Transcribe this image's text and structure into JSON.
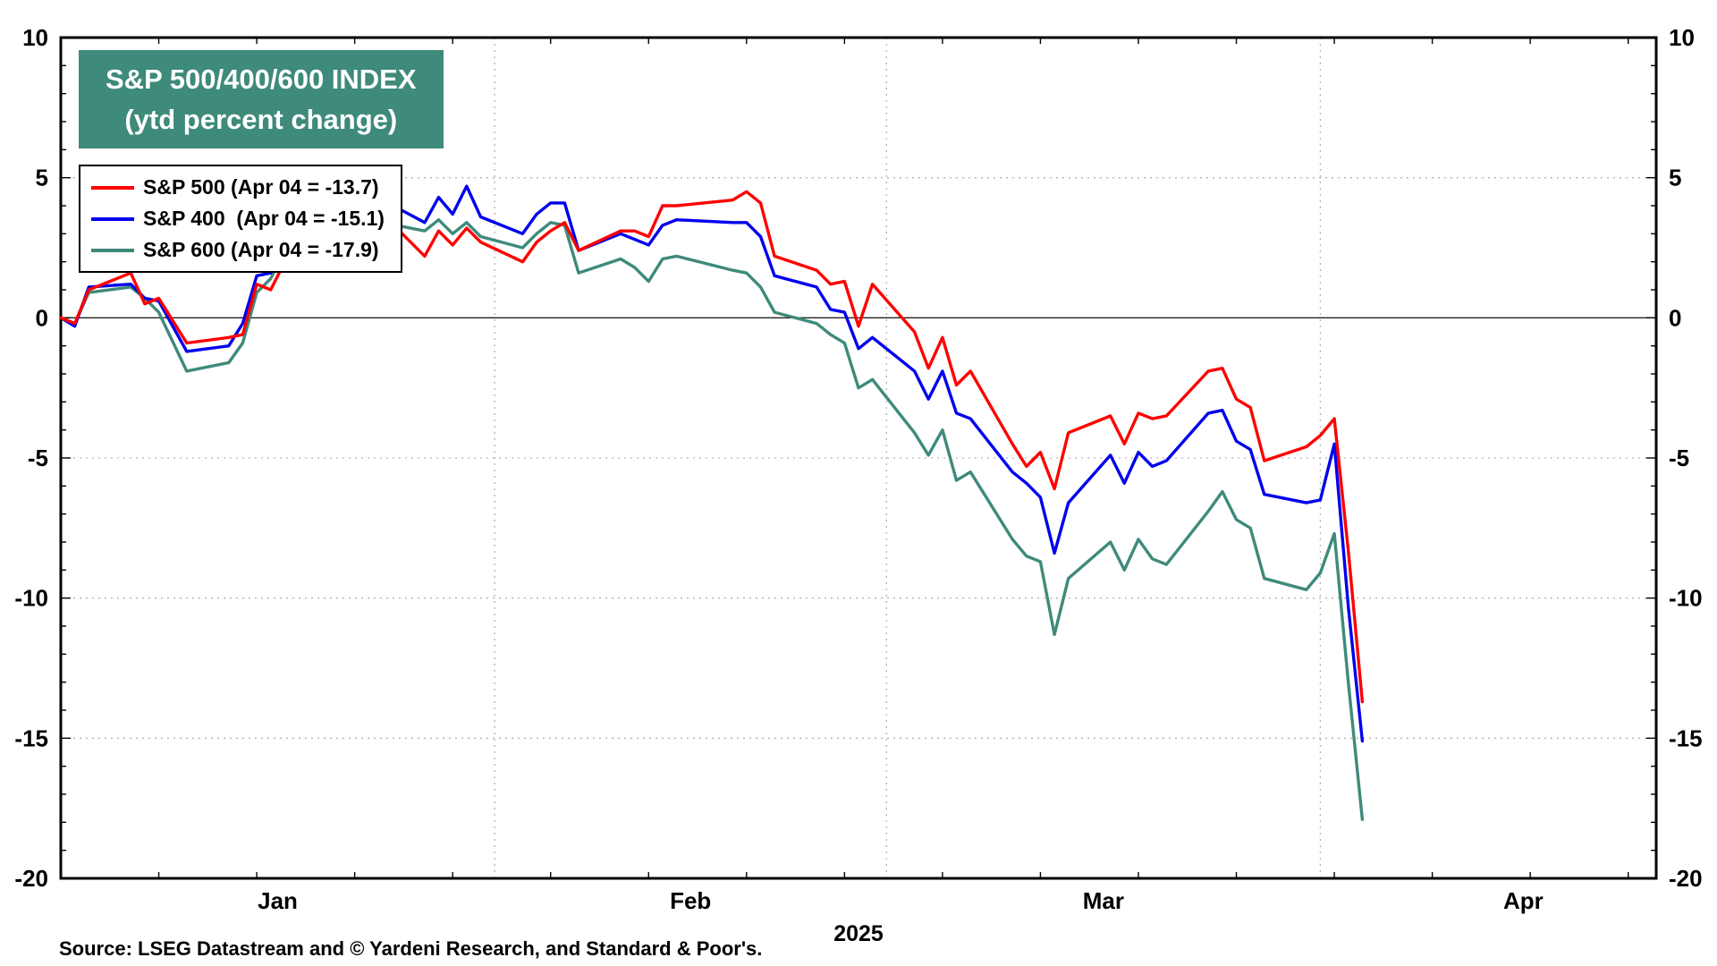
{
  "title": {
    "line1": "S&P 500/400/600 INDEX",
    "line2": "(ytd percent change)",
    "bg_color": "#3E8A7B",
    "text_color": "#ffffff"
  },
  "legend": {
    "items": [
      {
        "label": "S&P 500 (Apr 04 = -13.7)",
        "color": "#FF0000"
      },
      {
        "label": "S&P 400  (Apr 04 = -15.1)",
        "color": "#0000EE"
      },
      {
        "label": "S&P 600 (Apr 04 = -17.9)",
        "color": "#3E8A7B"
      }
    ]
  },
  "source": "Source: LSEG Datastream and © Yardeni Research, and Standard & Poor's.",
  "chart_data": {
    "type": "line",
    "title": "S&P 500/400/600 INDEX",
    "subtitle": "(ytd percent change)",
    "ylabel": "ytd percent change",
    "ylim": [
      -20,
      10
    ],
    "y_ticks": [
      10,
      5,
      0,
      -5,
      -10,
      -15,
      -20
    ],
    "y_gridlines": [
      5,
      -5,
      -10,
      -15
    ],
    "zero_line": 0,
    "grid": "dotted",
    "legend_position": "top-left",
    "x_domain_days": [
      0,
      114
    ],
    "x_month_gridline_days": [
      31,
      59,
      90
    ],
    "week_tick_step": 7,
    "x_months": [
      {
        "label": "Jan",
        "day": 15.5
      },
      {
        "label": "Feb",
        "day": 45
      },
      {
        "label": "Mar",
        "day": 74.5
      },
      {
        "label": "Apr",
        "day": 104.5
      }
    ],
    "x_year_label": "2025",
    "dates": [
      "Jan 1",
      "Jan 2",
      "Jan 3",
      "Jan 6",
      "Jan 7",
      "Jan 8",
      "Jan 10",
      "Jan 13",
      "Jan 14",
      "Jan 15",
      "Jan 16",
      "Jan 17",
      "Jan 21",
      "Jan 22",
      "Jan 23",
      "Jan 24",
      "Jan 27",
      "Jan 28",
      "Jan 29",
      "Jan 30",
      "Jan 31",
      "Feb 3",
      "Feb 4",
      "Feb 5",
      "Feb 6",
      "Feb 7",
      "Feb 10",
      "Feb 11",
      "Feb 12",
      "Feb 13",
      "Feb 14",
      "Feb 18",
      "Feb 19",
      "Feb 20",
      "Feb 21",
      "Feb 24",
      "Feb 25",
      "Feb 26",
      "Feb 27",
      "Feb 28",
      "Mar 3",
      "Mar 4",
      "Mar 5",
      "Mar 6",
      "Mar 7",
      "Mar 10",
      "Mar 11",
      "Mar 12",
      "Mar 13",
      "Mar 14",
      "Mar 17",
      "Mar 18",
      "Mar 19",
      "Mar 20",
      "Mar 21",
      "Mar 24",
      "Mar 25",
      "Mar 26",
      "Mar 27",
      "Mar 28",
      "Mar 31",
      "Apr 1",
      "Apr 2",
      "Apr 3",
      "Apr 4"
    ],
    "day_index": [
      0,
      1,
      2,
      5,
      6,
      7,
      9,
      12,
      13,
      14,
      15,
      16,
      20,
      21,
      22,
      23,
      26,
      27,
      28,
      29,
      30,
      33,
      34,
      35,
      36,
      37,
      40,
      41,
      42,
      43,
      44,
      48,
      49,
      50,
      51,
      54,
      55,
      56,
      57,
      58,
      61,
      62,
      63,
      64,
      65,
      68,
      69,
      70,
      71,
      72,
      75,
      76,
      77,
      78,
      79,
      82,
      83,
      84,
      85,
      86,
      89,
      90,
      91,
      92,
      93
    ],
    "series": [
      {
        "name": "S&P 500",
        "color": "#FF0000",
        "end_note": "Apr 04 = -13.7",
        "values": [
          0.0,
          -0.2,
          1.0,
          1.6,
          0.5,
          0.7,
          -0.9,
          -0.7,
          -0.6,
          1.2,
          1.0,
          2.0,
          2.9,
          3.5,
          4.0,
          3.7,
          2.2,
          3.1,
          2.6,
          3.2,
          2.7,
          2.0,
          2.7,
          3.1,
          3.4,
          2.4,
          3.1,
          3.1,
          2.9,
          4.0,
          4.0,
          4.2,
          4.5,
          4.1,
          2.2,
          1.7,
          1.2,
          1.3,
          -0.3,
          1.2,
          -0.5,
          -1.8,
          -0.7,
          -2.4,
          -1.9,
          -4.5,
          -5.3,
          -4.8,
          -6.1,
          -4.1,
          -3.5,
          -4.5,
          -3.4,
          -3.6,
          -3.5,
          -1.9,
          -1.8,
          -2.9,
          -3.2,
          -5.1,
          -4.6,
          -4.2,
          -3.6,
          -8.3,
          -13.7
        ]
      },
      {
        "name": "S&P 400",
        "color": "#0000EE",
        "end_note": "Apr 04 = -15.1",
        "values": [
          0.0,
          -0.3,
          1.1,
          1.2,
          0.7,
          0.6,
          -1.2,
          -1.0,
          -0.2,
          1.5,
          1.6,
          2.7,
          3.5,
          3.8,
          4.4,
          4.2,
          3.4,
          4.3,
          3.7,
          4.7,
          3.6,
          3.0,
          3.7,
          4.1,
          4.1,
          2.4,
          3.0,
          2.8,
          2.6,
          3.3,
          3.5,
          3.4,
          3.4,
          2.9,
          1.5,
          1.1,
          0.3,
          0.2,
          -1.1,
          -0.7,
          -1.9,
          -2.9,
          -1.9,
          -3.4,
          -3.6,
          -5.5,
          -5.9,
          -6.4,
          -8.4,
          -6.6,
          -4.9,
          -5.9,
          -4.8,
          -5.3,
          -5.1,
          -3.4,
          -3.3,
          -4.4,
          -4.7,
          -6.3,
          -6.6,
          -6.5,
          -4.5,
          -10.3,
          -15.1
        ]
      },
      {
        "name": "S&P 600",
        "color": "#3E8A7B",
        "end_note": "Apr 04 = -17.9",
        "values": [
          0.0,
          -0.2,
          0.9,
          1.1,
          0.7,
          0.2,
          -1.9,
          -1.6,
          -0.9,
          0.9,
          1.4,
          2.4,
          3.9,
          3.4,
          3.6,
          3.4,
          3.1,
          3.5,
          3.0,
          3.4,
          2.9,
          2.5,
          3.0,
          3.4,
          3.3,
          1.6,
          2.1,
          1.8,
          1.3,
          2.1,
          2.2,
          1.7,
          1.6,
          1.1,
          0.2,
          -0.2,
          -0.6,
          -0.9,
          -2.5,
          -2.2,
          -4.1,
          -4.9,
          -4.0,
          -5.8,
          -5.5,
          -7.9,
          -8.5,
          -8.7,
          -11.3,
          -9.3,
          -8.0,
          -9.0,
          -7.9,
          -8.6,
          -8.8,
          -6.9,
          -6.2,
          -7.2,
          -7.5,
          -9.3,
          -9.7,
          -9.1,
          -7.7,
          -13.0,
          -17.9
        ]
      }
    ]
  }
}
